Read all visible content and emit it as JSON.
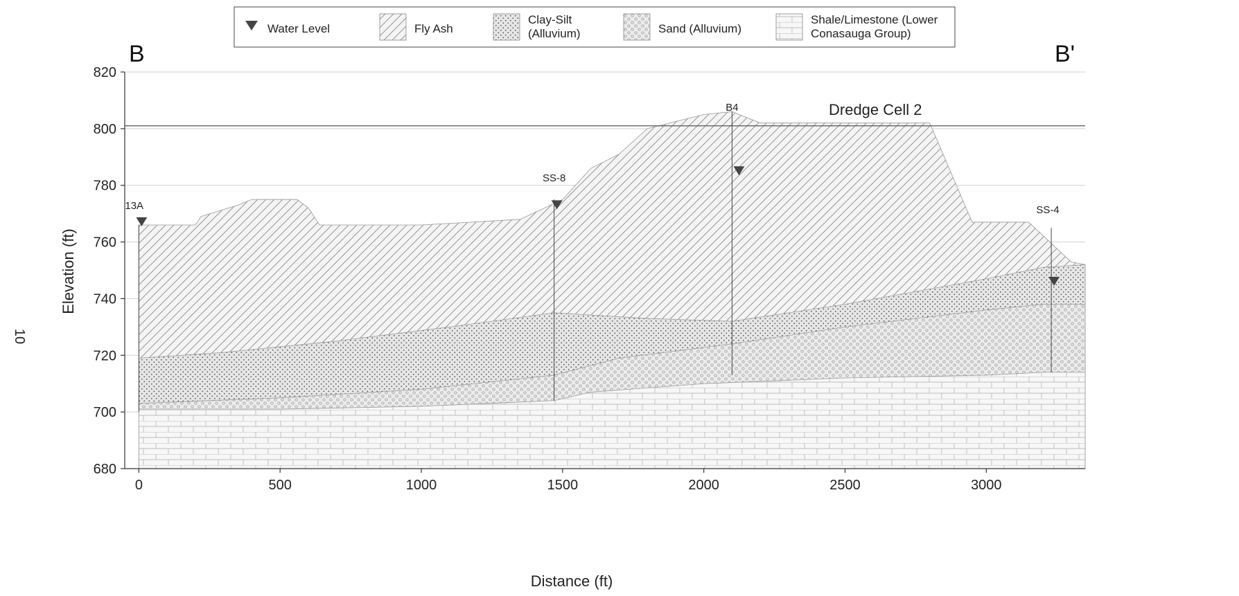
{
  "page_marker": "10",
  "section": {
    "start": "B",
    "end": "B'"
  },
  "region_label": "Dredge Cell 2",
  "legend": [
    {
      "key": "water",
      "lines": [
        "Water Level"
      ]
    },
    {
      "key": "flyash",
      "lines": [
        "Fly Ash"
      ]
    },
    {
      "key": "claysilt",
      "lines": [
        "Clay-Silt",
        "(Alluvium)"
      ]
    },
    {
      "key": "sand",
      "lines": [
        "Sand (Alluvium)"
      ]
    },
    {
      "key": "shale",
      "lines": [
        "Shale/Limestone (Lower",
        "Conasauga Group)"
      ]
    }
  ],
  "chart_data": {
    "type": "geologic cross-section",
    "xlabel": "Distance (ft)",
    "ylabel": "Elevation (ft)",
    "xlim": [
      -50,
      3350
    ],
    "ylim": [
      680,
      820
    ],
    "x_ticks": [
      0,
      500,
      1000,
      1500,
      2000,
      2500,
      3000
    ],
    "y_ticks": [
      680,
      700,
      720,
      740,
      760,
      780,
      800,
      820
    ],
    "reference_line_elevation": 801,
    "layers": [
      {
        "name": "Shale/Limestone (Lower Conasauga Group)",
        "pattern": "shale",
        "top": [
          [
            0,
            701
          ],
          [
            500,
            701
          ],
          [
            1000,
            702
          ],
          [
            1470,
            704
          ],
          [
            1600,
            707
          ],
          [
            2000,
            710
          ],
          [
            2500,
            712
          ],
          [
            3000,
            713
          ],
          [
            3200,
            714
          ],
          [
            3350,
            714
          ]
        ],
        "bottom": 680
      },
      {
        "name": "Sand (Alluvium)",
        "pattern": "sand",
        "top": [
          [
            0,
            703
          ],
          [
            500,
            705
          ],
          [
            1000,
            708
          ],
          [
            1470,
            713
          ],
          [
            1700,
            719
          ],
          [
            2100,
            724
          ],
          [
            2500,
            730
          ],
          [
            3000,
            736
          ],
          [
            3200,
            738
          ],
          [
            3350,
            738
          ]
        ]
      },
      {
        "name": "Clay-Silt (Alluvium)",
        "pattern": "claysilt",
        "top": [
          [
            0,
            719
          ],
          [
            300,
            721
          ],
          [
            700,
            725
          ],
          [
            1100,
            730
          ],
          [
            1470,
            735
          ],
          [
            1800,
            733
          ],
          [
            2100,
            732
          ],
          [
            2500,
            738
          ],
          [
            3000,
            747
          ],
          [
            3200,
            751
          ],
          [
            3350,
            752
          ]
        ]
      },
      {
        "name": "Fly Ash",
        "pattern": "flyash",
        "top": [
          [
            0,
            766
          ],
          [
            200,
            766
          ],
          [
            220,
            769
          ],
          [
            350,
            773
          ],
          [
            400,
            775
          ],
          [
            560,
            775
          ],
          [
            600,
            772
          ],
          [
            640,
            766
          ],
          [
            1000,
            766
          ],
          [
            1350,
            768
          ],
          [
            1500,
            775
          ],
          [
            1600,
            786
          ],
          [
            1700,
            791
          ],
          [
            1800,
            800
          ],
          [
            2000,
            805
          ],
          [
            2100,
            806
          ],
          [
            2200,
            802
          ],
          [
            2800,
            802
          ],
          [
            2950,
            767
          ],
          [
            3150,
            767
          ],
          [
            3300,
            753
          ],
          [
            3350,
            752
          ]
        ]
      }
    ],
    "wells": [
      {
        "name": "13A",
        "x": 0,
        "top": 766,
        "bottom": 700,
        "water_level": 767
      },
      {
        "name": "SS-8",
        "x": 1470,
        "top": 775,
        "bottom": 704,
        "water_level": 773
      },
      {
        "name": "B4",
        "x": 2100,
        "top": 806,
        "bottom": 713,
        "water_level": 785
      },
      {
        "name": "SS-4",
        "x": 3230,
        "top": 765,
        "bottom": 714,
        "water_level": 746
      }
    ]
  }
}
